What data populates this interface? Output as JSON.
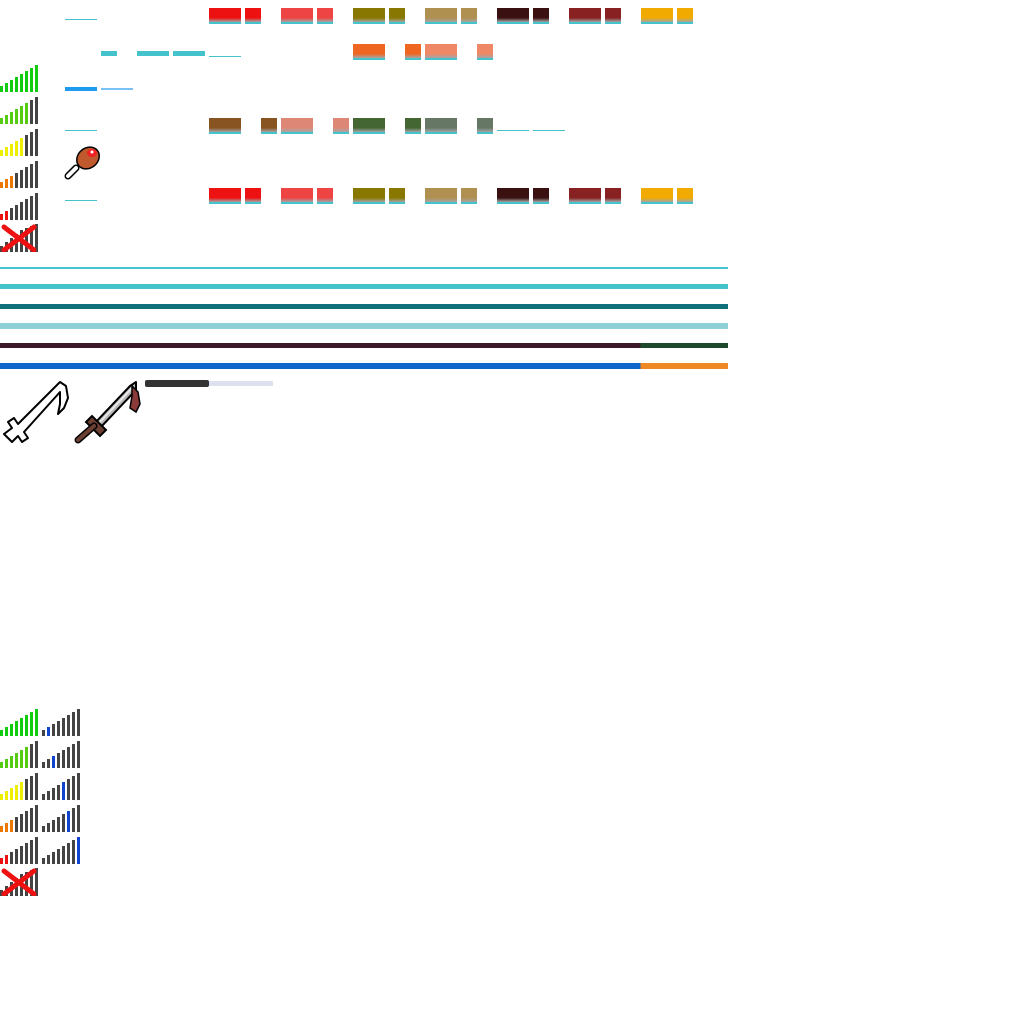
{
  "sheet": {
    "accent": "#45c3cc"
  },
  "signal_single": [
    {
      "name": "full",
      "level": 5,
      "color": "#11cc11"
    },
    {
      "name": "high",
      "level": 4,
      "color": "#55cc11"
    },
    {
      "name": "medium",
      "level": 3,
      "color": "#eeee00"
    },
    {
      "name": "low",
      "level": 2,
      "color": "#ee7700"
    },
    {
      "name": "poor",
      "level": 1,
      "color": "#ee1111"
    }
  ],
  "signal_dual": [
    {
      "name": "full",
      "level": 5,
      "color": "#11cc11",
      "level2": 1
    },
    {
      "name": "high",
      "level": 4,
      "color": "#55cc11",
      "level2": 2
    },
    {
      "name": "medium",
      "level": 3,
      "color": "#eeee00",
      "level2": 3
    },
    {
      "name": "low",
      "level": 2,
      "color": "#ee7700",
      "level2": 4
    },
    {
      "name": "poor",
      "level": 1,
      "color": "#ee1111",
      "level2": 5
    }
  ],
  "swatch_rows": [
    {
      "name": "row-1",
      "colors": [
        "#ee1111",
        "#ee1111",
        "#ee4444",
        "#ee4444",
        "#887700",
        "#887700",
        "#b09050",
        "#b09050",
        "#3a1010",
        "#3a1010",
        "#882222",
        "#882222",
        "#f0aa00",
        "#f0aa00"
      ]
    },
    {
      "name": "row-2",
      "colors": [
        "#ee6622",
        "#ee6622",
        "#ee8866",
        "#ee8866"
      ]
    },
    {
      "name": "row-3",
      "colors": [
        "#885522",
        "#885522",
        "#dd8877",
        "#dd8877",
        "#446633",
        "#446633",
        "#667766",
        "#667766"
      ]
    },
    {
      "name": "row-4",
      "colors": [
        "#ee1111",
        "#ee1111",
        "#ee4444",
        "#ee4444",
        "#887700",
        "#887700",
        "#b09050",
        "#b09050",
        "#3a1010",
        "#3a1010",
        "#882222",
        "#882222",
        "#f0aa00",
        "#f0aa00"
      ]
    }
  ],
  "long_bars": [
    {
      "name": "teal-thin",
      "color": "#45c3cc"
    },
    {
      "name": "teal-medium",
      "color": "#45c3cc"
    },
    {
      "name": "teal-dark",
      "color": "#0f6f7a"
    },
    {
      "name": "teal-light",
      "color": "#8fd0d6"
    },
    {
      "name": "dark-plum",
      "color": "#3a1a2a",
      "end_color": "#1d4a2a"
    },
    {
      "name": "blue",
      "color": "#1166cc",
      "end_color": "#ee8822"
    }
  ],
  "progress": {
    "fill_fraction": 0.5,
    "fill_color": "#333333",
    "track_color": "#dde0ee"
  },
  "icons": {
    "food": "drumstick-icon",
    "weapon_outline": "sword-outline-icon",
    "weapon": "sword-icon",
    "no_signal": "no-signal-icon"
  }
}
